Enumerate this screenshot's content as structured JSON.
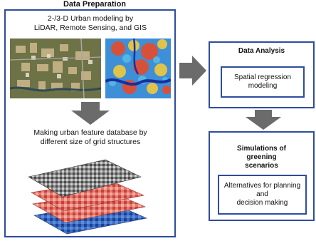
{
  "diagram": {
    "title": "Data Preparation",
    "prep_line1": "2-/3-D Urban modeling by",
    "prep_line2": "LiDAR, Remote Sensing, and GIS",
    "db_line1": "Making urban feature database by",
    "db_line2": "different size of grid structures",
    "analysis_title": "Data Analysis",
    "analysis_body": "Spatial regression\nmodeling",
    "sim_title": "Simulations of\ngreening\nscenarios",
    "sim_body": "Alternatives for planning\nand\ndecision making"
  },
  "colors": {
    "box_border": "#2e4d9e",
    "arrow": "#6b6b6b"
  },
  "images": [
    {
      "name": "aerial-urban-photo"
    },
    {
      "name": "thermal-heat-map"
    },
    {
      "name": "stacked-grid-layers"
    }
  ]
}
